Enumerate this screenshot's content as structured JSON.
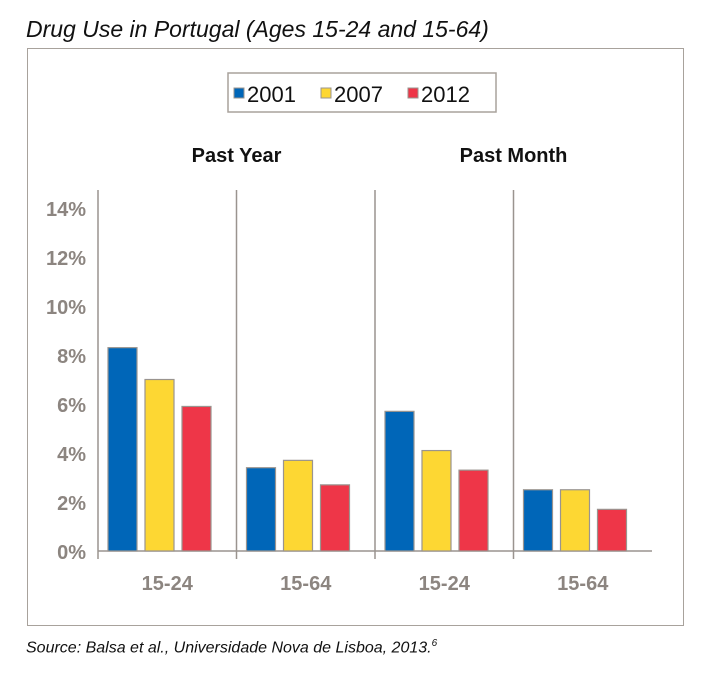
{
  "title": "Drug Use in Portugal (Ages 15-24 and 15-64)",
  "source": "Source: Balsa et al., Universidade Nova de Lisboa, 2013.",
  "source_footnote": "6",
  "chart_data": {
    "type": "bar",
    "title": "Drug Use in Portugal (Ages 15-24 and 15-64)",
    "panels": [
      "Past Year",
      "Past Month"
    ],
    "categories": [
      "15-24",
      "15-64",
      "15-24",
      "15-64"
    ],
    "series": [
      {
        "name": "2001",
        "color": "#0066b8",
        "values": [
          8.3,
          3.4,
          5.7,
          2.5
        ]
      },
      {
        "name": "2007",
        "color": "#fdd733",
        "values": [
          7.0,
          3.7,
          4.1,
          2.5
        ]
      },
      {
        "name": "2012",
        "color": "#ee3648",
        "values": [
          5.9,
          2.7,
          3.3,
          1.7
        ]
      }
    ],
    "yticks": [
      "0%",
      "2%",
      "4%",
      "6%",
      "8%",
      "10%",
      "12%",
      "14%"
    ],
    "ylim": [
      0,
      14
    ],
    "unit": "%",
    "grid": false,
    "legend": "top-center"
  }
}
